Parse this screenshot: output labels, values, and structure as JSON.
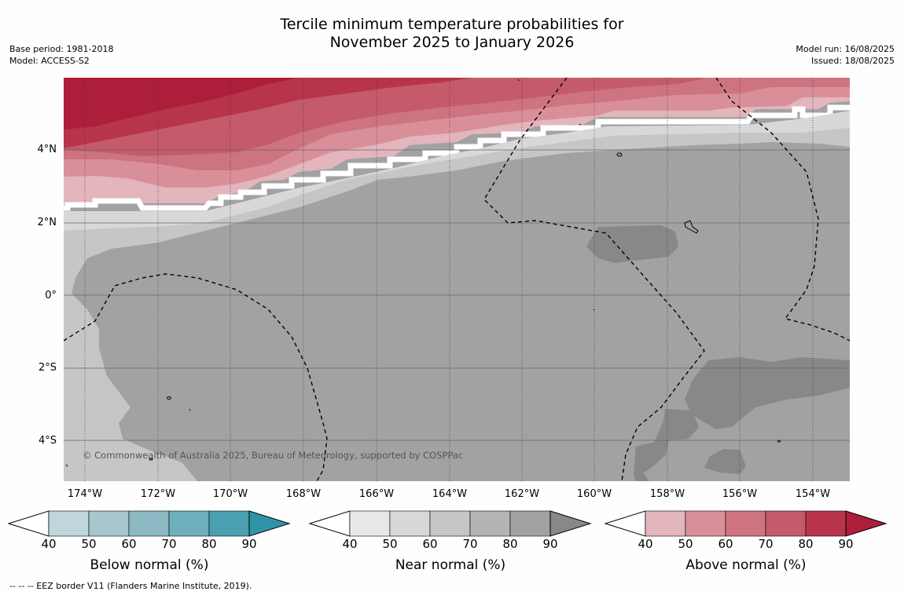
{
  "title_line1": "Tercile minimum temperature probabilities for",
  "title_line2": "November 2025 to January 2026",
  "base_period": "Base period: 1981-2018",
  "model": "Model: ACCESS-S2",
  "model_run": "Model run: 16/08/2025",
  "issued": "Issued: 18/08/2025",
  "copyright": "© Commonwealth of Australia 2025, Bureau of Meteorology, supported by COSPPac",
  "lat_labels": [
    "4°N",
    "2°N",
    "0°",
    "2°S",
    "4°S"
  ],
  "lon_labels": [
    "174°W",
    "172°W",
    "170°W",
    "168°W",
    "166°W",
    "164°W",
    "162°W",
    "160°W",
    "158°W",
    "156°W",
    "154°W"
  ],
  "colorbars": [
    {
      "title": "Below normal (%)",
      "ticks": [
        "40",
        "50",
        "60",
        "70",
        "80",
        "90"
      ],
      "colors": [
        "#bed6dc",
        "#a7c7cd",
        "#8cb8c3",
        "#6eafbb",
        "#4aa0b0",
        "#2f94a8"
      ]
    },
    {
      "title": "Near normal (%)",
      "ticks": [
        "40",
        "50",
        "60",
        "70",
        "80",
        "90"
      ],
      "colors": [
        "#e8e8e8",
        "#d8d8d8",
        "#c6c6c6",
        "#b4b4b4",
        "#a2a2a2",
        "#888888"
      ]
    },
    {
      "title": "Above normal (%)",
      "ticks": [
        "40",
        "50",
        "60",
        "70",
        "80",
        "90"
      ],
      "colors": [
        "#e3b5bc",
        "#d98f9a",
        "#cd7480",
        "#c45a6a",
        "#b8344b",
        "#ad1e3a"
      ]
    }
  ],
  "footer": "--  --  -- EEZ border V11 (Flanders Marine Institute, 2019)."
}
